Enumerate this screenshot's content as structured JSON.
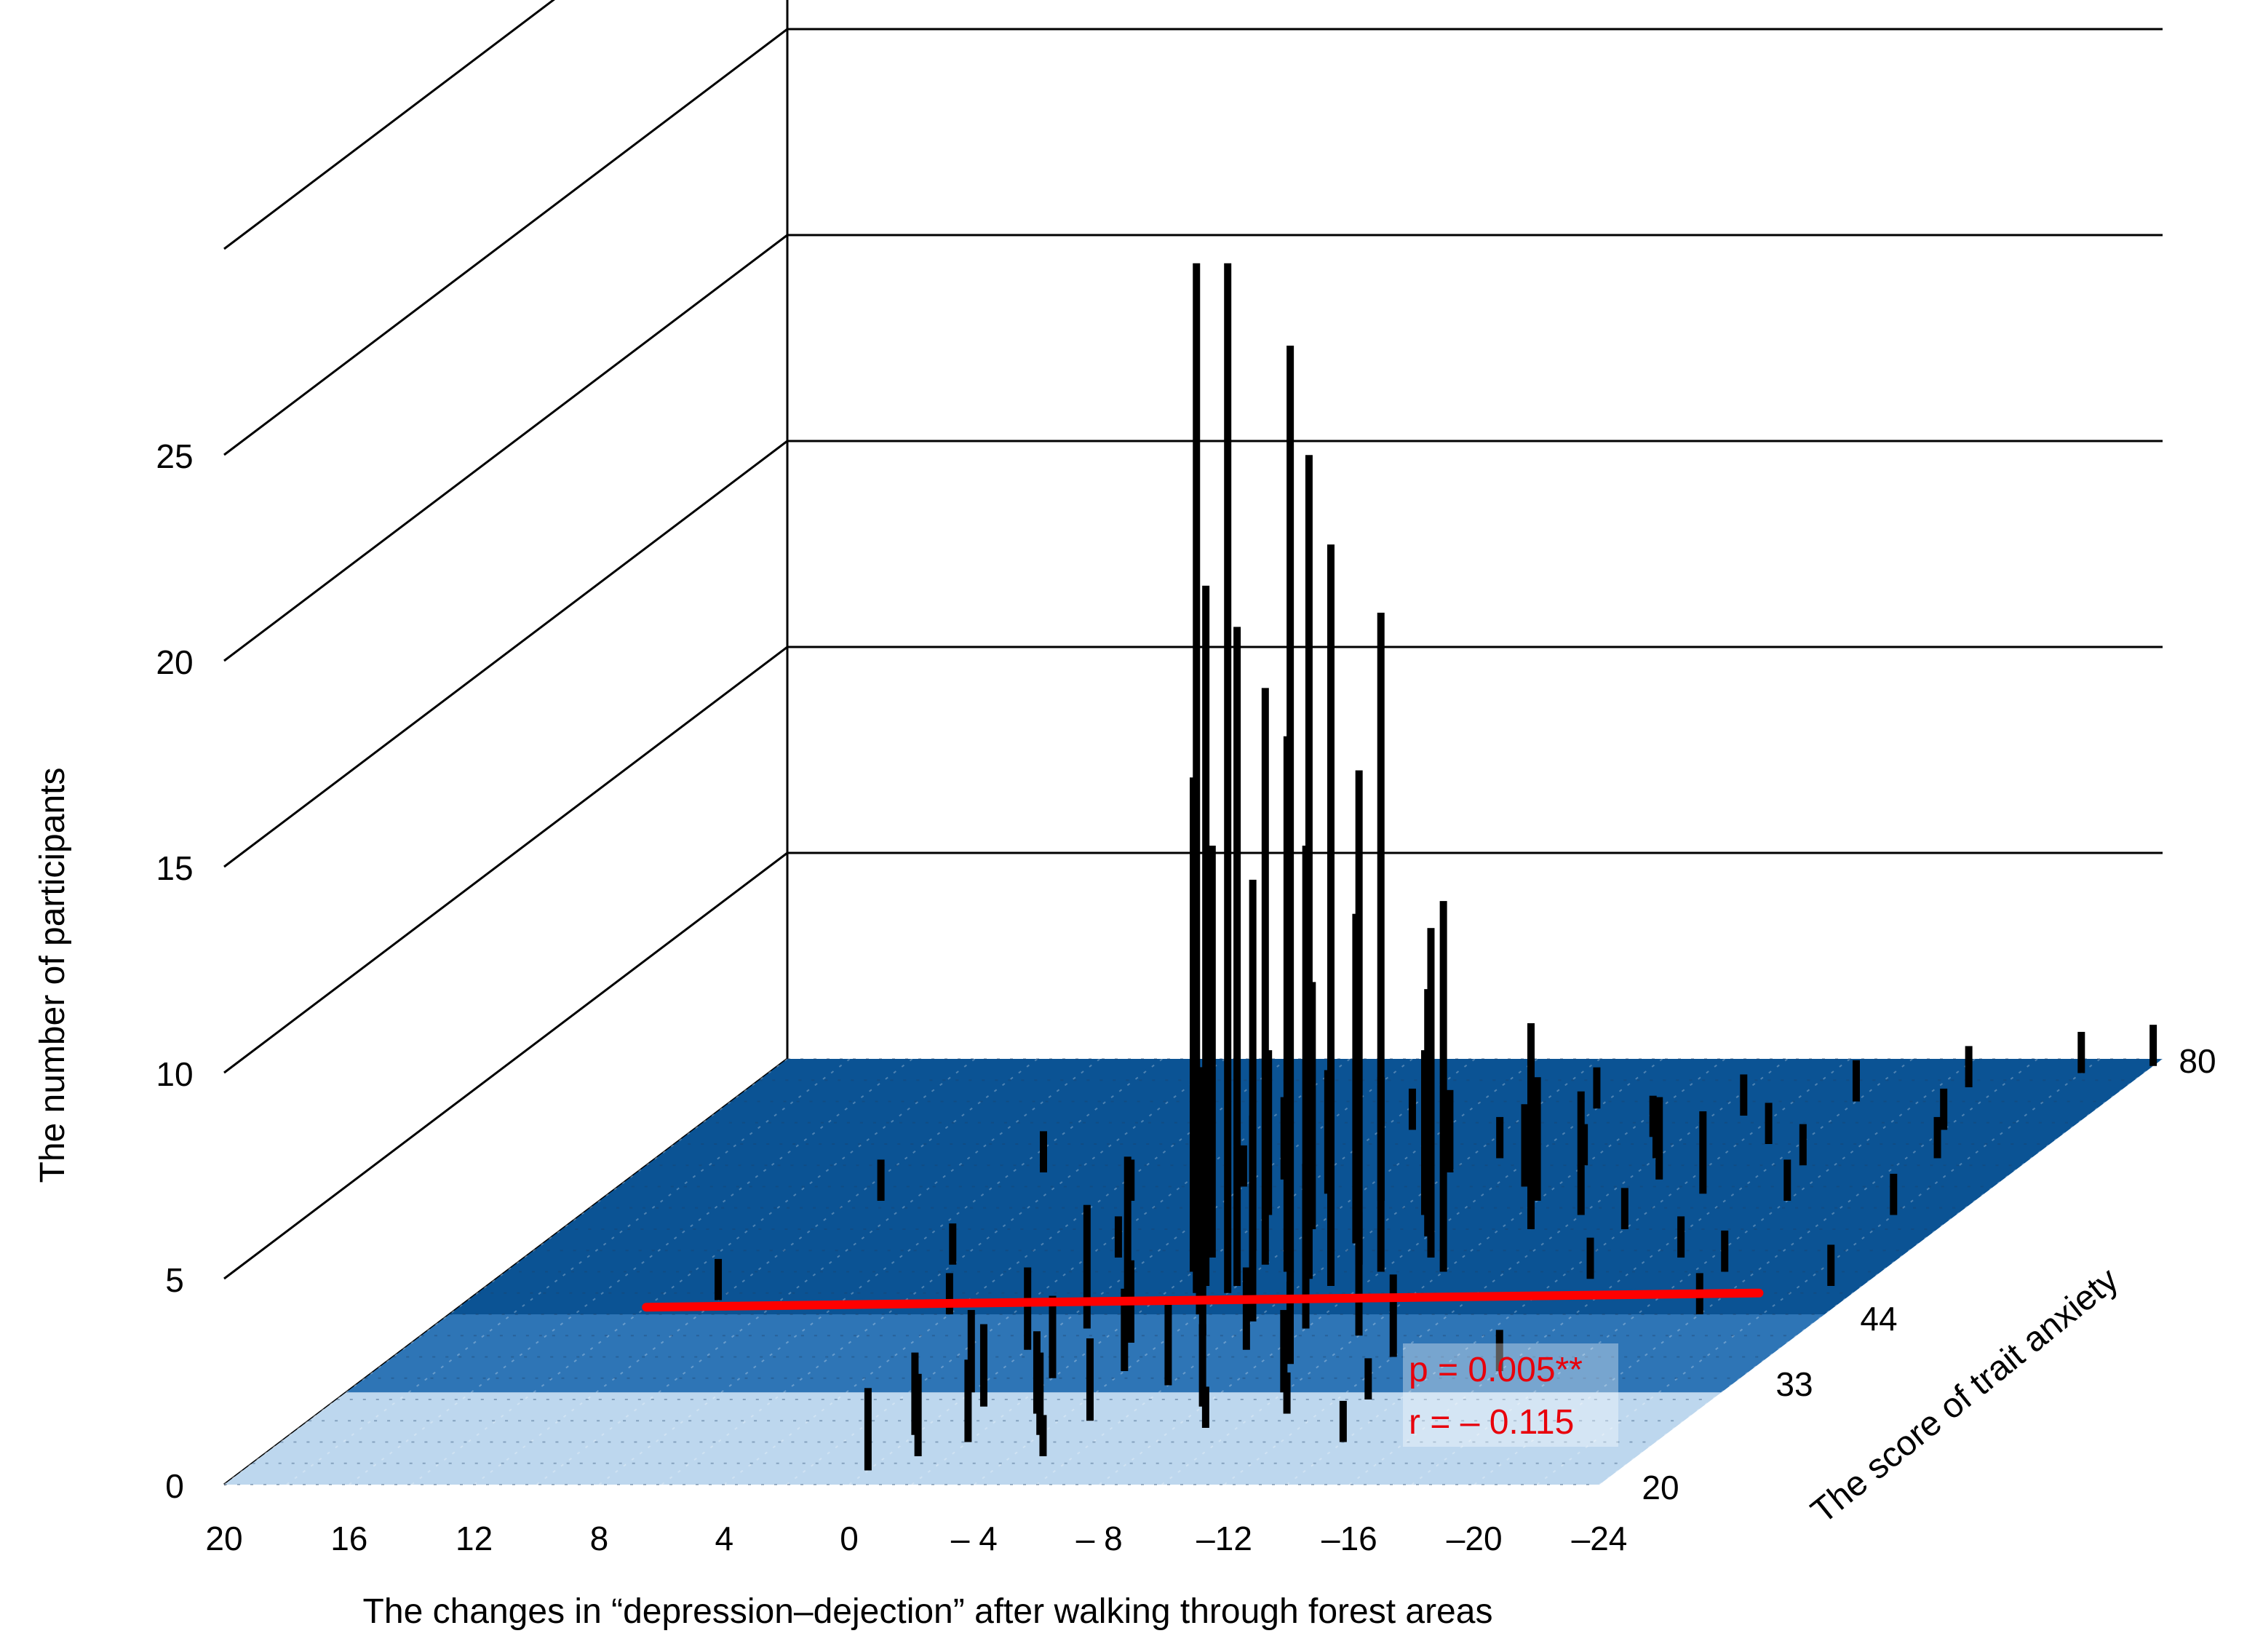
{
  "chart_data": {
    "type": "bar3d",
    "xlabel": "The changes in “depression–dejection” after walking through forest areas",
    "ylabel": "The score of trait anxiety",
    "zlabel": "The number of participants",
    "x_ticks": [
      "20",
      "16",
      "12",
      "8",
      "4",
      "0",
      "– 4",
      "– 8",
      "–12",
      "–16",
      "–20",
      "–24"
    ],
    "y_ticks": [
      "20",
      "33",
      "44",
      "80"
    ],
    "z_ticks": [
      "0",
      "5",
      "10",
      "15",
      "20",
      "25"
    ],
    "xlim": [
      20,
      -24
    ],
    "ylim": [
      20,
      80
    ],
    "zlim": [
      0,
      25
    ],
    "y_bands": [
      {
        "from": 20,
        "to": 33,
        "color": "#bdd7ee"
      },
      {
        "from": 33,
        "to": 44,
        "color": "#2e75b6"
      },
      {
        "from": 44,
        "to": 80,
        "color": "#0b5394"
      }
    ],
    "bar_color": "#000000",
    "regression_line": {
      "color": "#ff0000",
      "points": [
        {
          "x": 14,
          "y": 45
        },
        {
          "x": -21,
          "y": 47
        }
      ]
    },
    "annotations": [
      "p = 0.005**",
      "r = – 0.115"
    ],
    "bars": [
      {
        "x": -3,
        "y": 47,
        "z": 25
      },
      {
        "x": -4,
        "y": 47,
        "z": 25
      },
      {
        "x": -6,
        "y": 47,
        "z": 23
      },
      {
        "x": -3,
        "y": 48,
        "z": 17
      },
      {
        "x": -4,
        "y": 48,
        "z": 16
      },
      {
        "x": -6,
        "y": 49,
        "z": 20
      },
      {
        "x": -7,
        "y": 48,
        "z": 18
      },
      {
        "x": -5,
        "y": 50,
        "z": 13
      },
      {
        "x": -8,
        "y": 50,
        "z": 16
      },
      {
        "x": -2,
        "y": 50,
        "z": 12
      },
      {
        "x": -4,
        "y": 51,
        "z": 14
      },
      {
        "x": -7,
        "y": 51,
        "z": 12
      },
      {
        "x": -10,
        "y": 50,
        "z": 9
      },
      {
        "x": -2,
        "y": 52,
        "z": 10
      },
      {
        "x": -5,
        "y": 52,
        "z": 10
      },
      {
        "x": -9,
        "y": 52,
        "z": 8
      },
      {
        "x": -3,
        "y": 53,
        "z": 9
      },
      {
        "x": -6,
        "y": 54,
        "z": 8
      },
      {
        "x": -1,
        "y": 55,
        "z": 6
      },
      {
        "x": -8,
        "y": 55,
        "z": 6
      },
      {
        "x": -4,
        "y": 56,
        "z": 6
      },
      {
        "x": -11,
        "y": 56,
        "z": 5
      },
      {
        "x": -2,
        "y": 58,
        "z": 4
      },
      {
        "x": -7,
        "y": 58,
        "z": 4
      },
      {
        "x": -5,
        "y": 60,
        "z": 3
      },
      {
        "x": -10,
        "y": 60,
        "z": 3
      },
      {
        "x": -12,
        "y": 58,
        "z": 3
      },
      {
        "x": -3,
        "y": 61,
        "z": 3
      },
      {
        "x": -9,
        "y": 62,
        "z": 2
      },
      {
        "x": -6,
        "y": 64,
        "z": 2
      },
      {
        "x": -13,
        "y": 63,
        "z": 2
      },
      {
        "x": -1,
        "y": 63,
        "z": 2
      },
      {
        "x": -15,
        "y": 61,
        "z": 2
      },
      {
        "x": -4,
        "y": 44,
        "z": 6
      },
      {
        "x": -6,
        "y": 43,
        "z": 5
      },
      {
        "x": -2,
        "y": 43,
        "z": 4
      },
      {
        "x": -8,
        "y": 42,
        "z": 4
      },
      {
        "x": -5,
        "y": 41,
        "z": 3
      },
      {
        "x": -1,
        "y": 42,
        "z": 3
      },
      {
        "x": -10,
        "y": 41,
        "z": 3
      },
      {
        "x": -3,
        "y": 40,
        "z": 2
      },
      {
        "x": -7,
        "y": 39,
        "z": 2
      },
      {
        "x": 0,
        "y": 39,
        "z": 2
      },
      {
        "x": -9,
        "y": 37,
        "z": 2
      },
      {
        "x": -4,
        "y": 36,
        "z": 2
      },
      {
        "x": -12,
        "y": 38,
        "z": 2
      },
      {
        "x": -2,
        "y": 35,
        "z": 2
      },
      {
        "x": -6,
        "y": 34,
        "z": 2
      },
      {
        "x": 0,
        "y": 33,
        "z": 2
      },
      {
        "x": -1,
        "y": 31,
        "z": 2
      },
      {
        "x": -3,
        "y": 30,
        "z": 2
      },
      {
        "x": -5,
        "y": 29,
        "z": 2
      },
      {
        "x": -8,
        "y": 31,
        "z": 2
      },
      {
        "x": -10,
        "y": 33,
        "z": 2
      },
      {
        "x": 0,
        "y": 27,
        "z": 2
      },
      {
        "x": -2,
        "y": 26,
        "z": 2
      },
      {
        "x": -4,
        "y": 27,
        "z": 2
      },
      {
        "x": -1,
        "y": 24,
        "z": 2
      },
      {
        "x": 0,
        "y": 22,
        "z": 2
      },
      {
        "x": -5,
        "y": 24,
        "z": 1
      },
      {
        "x": -9,
        "y": 28,
        "z": 1
      },
      {
        "x": -11,
        "y": 30,
        "z": 1
      },
      {
        "x": -13,
        "y": 32,
        "z": 1
      },
      {
        "x": -14,
        "y": 26,
        "z": 1
      },
      {
        "x": -16,
        "y": 36,
        "z": 1
      },
      {
        "x": -20,
        "y": 44,
        "z": 1
      },
      {
        "x": 12,
        "y": 46,
        "z": 1
      },
      {
        "x": 4,
        "y": 44,
        "z": 1
      },
      {
        "x": 6,
        "y": 51,
        "z": 1
      },
      {
        "x": 1,
        "y": 52,
        "z": 1
      },
      {
        "x": 3,
        "y": 60,
        "z": 1
      },
      {
        "x": 11,
        "y": 60,
        "z": 1
      },
      {
        "x": 7,
        "y": 64,
        "z": 1
      },
      {
        "x": 0,
        "y": 62,
        "z": 1
      },
      {
        "x": -3,
        "y": 70,
        "z": 1
      },
      {
        "x": -8,
        "y": 73,
        "z": 1
      },
      {
        "x": -13,
        "y": 72,
        "z": 1
      },
      {
        "x": -16,
        "y": 74,
        "z": 1
      },
      {
        "x": -19,
        "y": 76,
        "z": 1
      },
      {
        "x": -22,
        "y": 78,
        "z": 1
      },
      {
        "x": -24,
        "y": 79,
        "z": 1
      },
      {
        "x": -18,
        "y": 60,
        "z": 1
      },
      {
        "x": -21,
        "y": 66,
        "z": 1
      },
      {
        "x": -22,
        "y": 58,
        "z": 1
      },
      {
        "x": -17,
        "y": 52,
        "z": 1
      },
      {
        "x": -23,
        "y": 48,
        "z": 1
      },
      {
        "x": -15,
        "y": 49,
        "z": 1
      },
      {
        "x": -19,
        "y": 50,
        "z": 1
      },
      {
        "x": -14,
        "y": 56,
        "z": 1
      },
      {
        "x": -12,
        "y": 66,
        "z": 1
      },
      {
        "x": -11,
        "y": 69,
        "z": 1
      },
      {
        "x": -15,
        "y": 68,
        "z": 1
      },
      {
        "x": -17,
        "y": 65,
        "z": 1
      },
      {
        "x": -20,
        "y": 70,
        "z": 1
      },
      {
        "x": -10,
        "y": 65,
        "z": 1
      },
      {
        "x": -7,
        "y": 66,
        "z": 1
      }
    ]
  }
}
